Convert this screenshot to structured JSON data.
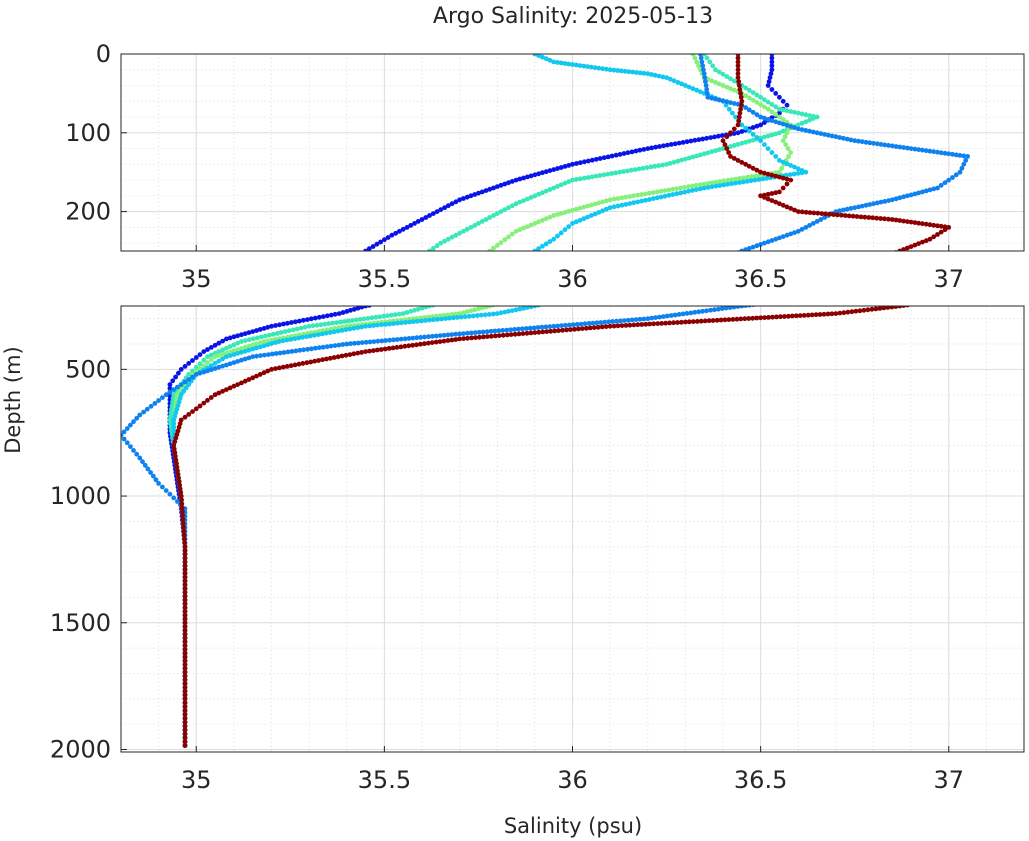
{
  "chart_data": {
    "type": "scatter",
    "title": "Argo Salinity: 2025-05-13",
    "xlabel": "Salinity (psu)",
    "ylabel": "Depth (m)",
    "grid": true,
    "minor_grid": true,
    "panels": [
      {
        "name": "upper",
        "xlim": [
          34.8,
          37.2
        ],
        "ylim": [
          0,
          250
        ],
        "y_reversed": true,
        "xticks": [
          35,
          35.5,
          36,
          36.5,
          37
        ],
        "xtick_labels": [
          "35",
          "35.5",
          "36",
          "36.5",
          "37"
        ],
        "yticks": [
          0,
          100,
          200
        ],
        "ytick_labels": [
          "0",
          "100",
          "200"
        ]
      },
      {
        "name": "lower",
        "xlim": [
          34.8,
          37.2
        ],
        "ylim": [
          250,
          2010
        ],
        "y_reversed": true,
        "xticks": [
          35,
          35.5,
          36,
          36.5,
          37
        ],
        "xtick_labels": [
          "35",
          "35.5",
          "36",
          "36.5",
          "37"
        ],
        "yticks": [
          500,
          1000,
          1500,
          2000
        ],
        "ytick_labels": [
          "500",
          "1000",
          "1500",
          "2000"
        ]
      }
    ],
    "series": [
      {
        "color": "#0a14e6",
        "points": [
          [
            36.53,
            0
          ],
          [
            36.53,
            20
          ],
          [
            36.52,
            40
          ],
          [
            36.55,
            55
          ],
          [
            36.57,
            65
          ],
          [
            36.55,
            75
          ],
          [
            36.5,
            90
          ],
          [
            36.44,
            100
          ],
          [
            36.2,
            120
          ],
          [
            36.0,
            140
          ],
          [
            35.85,
            160
          ],
          [
            35.7,
            185
          ],
          [
            35.6,
            210
          ],
          [
            35.52,
            230
          ],
          [
            35.45,
            250
          ],
          [
            35.38,
            280
          ],
          [
            35.2,
            330
          ],
          [
            35.08,
            380
          ],
          [
            35.02,
            430
          ],
          [
            34.96,
            500
          ],
          [
            34.93,
            560
          ],
          [
            34.93,
            650
          ],
          [
            34.93,
            750
          ],
          [
            34.94,
            850
          ],
          [
            34.95,
            950
          ],
          [
            34.96,
            1050
          ],
          [
            34.97,
            1200
          ],
          [
            34.97,
            1500
          ],
          [
            34.97,
            1800
          ],
          [
            34.97,
            2000
          ]
        ]
      },
      {
        "color": "#38e8b8",
        "points": [
          [
            36.35,
            0
          ],
          [
            36.38,
            20
          ],
          [
            36.45,
            40
          ],
          [
            36.5,
            55
          ],
          [
            36.55,
            70
          ],
          [
            36.65,
            80
          ],
          [
            36.55,
            100
          ],
          [
            36.4,
            120
          ],
          [
            36.25,
            140
          ],
          [
            36.0,
            160
          ],
          [
            35.85,
            190
          ],
          [
            35.75,
            215
          ],
          [
            35.65,
            240
          ],
          [
            35.62,
            250
          ],
          [
            35.55,
            280
          ],
          [
            35.3,
            330
          ],
          [
            35.12,
            390
          ],
          [
            35.03,
            450
          ],
          [
            34.98,
            520
          ],
          [
            34.94,
            600
          ],
          [
            34.93,
            700
          ],
          [
            34.94,
            800
          ],
          [
            34.95,
            900
          ],
          [
            34.96,
            1000
          ],
          [
            34.97,
            1200
          ],
          [
            34.97,
            1500
          ],
          [
            34.97,
            1800
          ],
          [
            34.97,
            2000
          ]
        ]
      },
      {
        "color": "#86f07a",
        "points": [
          [
            36.32,
            0
          ],
          [
            36.35,
            30
          ],
          [
            36.45,
            50
          ],
          [
            36.52,
            70
          ],
          [
            36.58,
            90
          ],
          [
            36.56,
            110
          ],
          [
            36.58,
            125
          ],
          [
            36.55,
            150
          ],
          [
            36.35,
            165
          ],
          [
            36.1,
            185
          ],
          [
            35.95,
            205
          ],
          [
            35.85,
            225
          ],
          [
            35.78,
            250
          ],
          [
            35.7,
            280
          ],
          [
            35.4,
            330
          ],
          [
            35.18,
            390
          ],
          [
            35.05,
            450
          ],
          [
            34.99,
            520
          ],
          [
            34.95,
            600
          ],
          [
            34.94,
            700
          ],
          [
            34.94,
            800
          ],
          [
            34.95,
            900
          ],
          [
            34.96,
            1000
          ],
          [
            34.97,
            1200
          ],
          [
            34.97,
            1500
          ],
          [
            34.97,
            1800
          ],
          [
            34.97,
            2000
          ]
        ]
      },
      {
        "color": "#12c7f0",
        "points": [
          [
            35.9,
            0
          ],
          [
            35.95,
            10
          ],
          [
            36.1,
            20
          ],
          [
            36.2,
            25
          ],
          [
            36.25,
            30
          ],
          [
            36.3,
            40
          ],
          [
            36.4,
            60
          ],
          [
            36.45,
            90
          ],
          [
            36.5,
            110
          ],
          [
            36.55,
            135
          ],
          [
            36.62,
            150
          ],
          [
            36.35,
            170
          ],
          [
            36.1,
            195
          ],
          [
            36.0,
            215
          ],
          [
            35.95,
            235
          ],
          [
            35.9,
            250
          ],
          [
            35.8,
            280
          ],
          [
            35.45,
            330
          ],
          [
            35.22,
            390
          ],
          [
            35.08,
            450
          ],
          [
            35.0,
            520
          ],
          [
            34.96,
            600
          ],
          [
            34.94,
            700
          ],
          [
            34.94,
            800
          ],
          [
            34.95,
            900
          ],
          [
            34.96,
            1000
          ],
          [
            34.97,
            1200
          ],
          [
            34.97,
            1500
          ],
          [
            34.97,
            1800
          ],
          [
            34.97,
            2000
          ]
        ]
      },
      {
        "color": "#0f82f0",
        "points": [
          [
            36.34,
            0
          ],
          [
            36.35,
            25
          ],
          [
            36.36,
            55
          ],
          [
            36.45,
            65
          ],
          [
            36.5,
            80
          ],
          [
            36.6,
            95
          ],
          [
            36.75,
            110
          ],
          [
            36.9,
            120
          ],
          [
            37.05,
            130
          ],
          [
            37.03,
            150
          ],
          [
            36.97,
            170
          ],
          [
            36.85,
            185
          ],
          [
            36.7,
            200
          ],
          [
            36.6,
            225
          ],
          [
            36.45,
            250
          ],
          [
            36.2,
            300
          ],
          [
            35.7,
            360
          ],
          [
            35.4,
            400
          ],
          [
            35.15,
            450
          ],
          [
            35.0,
            520
          ],
          [
            34.92,
            600
          ],
          [
            34.85,
            680
          ],
          [
            34.8,
            760
          ],
          [
            34.85,
            850
          ],
          [
            34.9,
            950
          ],
          [
            34.97,
            1050
          ],
          [
            34.97,
            1200
          ],
          [
            34.97,
            1500
          ],
          [
            34.97,
            1800
          ],
          [
            34.97,
            2000
          ]
        ]
      },
      {
        "color": "#8b0000",
        "points": [
          [
            36.44,
            0
          ],
          [
            36.44,
            30
          ],
          [
            36.45,
            60
          ],
          [
            36.44,
            90
          ],
          [
            36.4,
            110
          ],
          [
            36.42,
            130
          ],
          [
            36.5,
            150
          ],
          [
            36.58,
            160
          ],
          [
            36.55,
            175
          ],
          [
            36.5,
            180
          ],
          [
            36.55,
            190
          ],
          [
            36.6,
            200
          ],
          [
            36.85,
            210
          ],
          [
            37.0,
            220
          ],
          [
            36.95,
            235
          ],
          [
            36.87,
            250
          ],
          [
            36.7,
            280
          ],
          [
            36.1,
            330
          ],
          [
            35.7,
            380
          ],
          [
            35.45,
            430
          ],
          [
            35.2,
            500
          ],
          [
            35.05,
            600
          ],
          [
            34.96,
            700
          ],
          [
            34.94,
            800
          ],
          [
            34.95,
            900
          ],
          [
            34.96,
            1000
          ],
          [
            34.97,
            1200
          ],
          [
            34.97,
            1500
          ],
          [
            34.97,
            1800
          ],
          [
            34.97,
            2000
          ]
        ]
      }
    ]
  }
}
